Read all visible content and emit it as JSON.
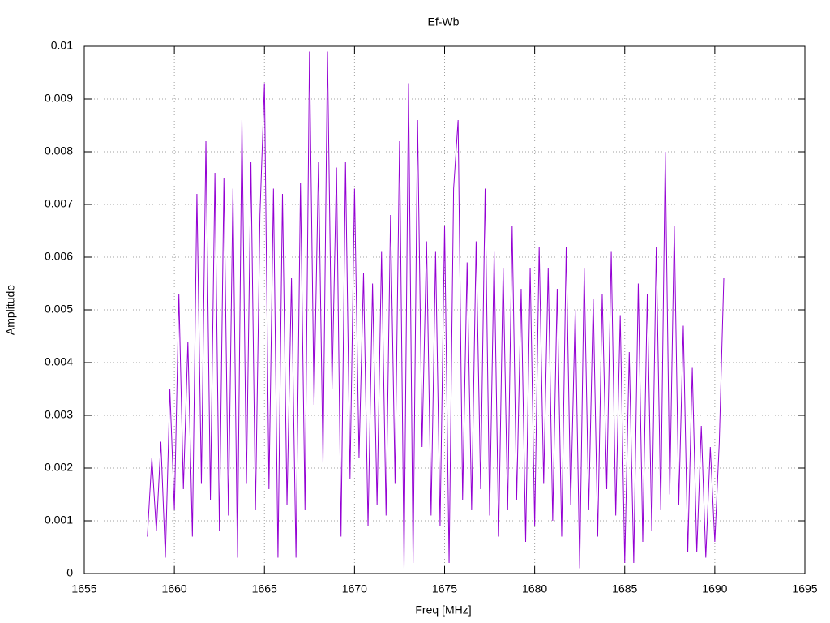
{
  "chart_data": {
    "type": "line",
    "title": "Ef-Wb",
    "xlabel": "Freq [MHz]",
    "ylabel": "Amplitude",
    "xlim": [
      1655,
      1695
    ],
    "xticks": [
      1655,
      1660,
      1665,
      1670,
      1675,
      1680,
      1685,
      1690,
      1695
    ],
    "ylim": [
      0,
      0.01
    ],
    "yticks": [
      0,
      0.001,
      0.002,
      0.003,
      0.004,
      0.005,
      0.006,
      0.007,
      0.008,
      0.009,
      0.01
    ],
    "grid": true,
    "series": [
      {
        "color": "#9400d3",
        "x": [
          1658.5,
          1658.75,
          1659,
          1659.25,
          1659.5,
          1659.75,
          1660,
          1660.25,
          1660.5,
          1660.75,
          1661,
          1661.25,
          1661.5,
          1661.75,
          1662,
          1662.25,
          1662.5,
          1662.75,
          1663,
          1663.25,
          1663.5,
          1663.75,
          1664,
          1664.25,
          1664.5,
          1664.75,
          1665,
          1665.25,
          1665.5,
          1665.75,
          1666,
          1666.25,
          1666.5,
          1666.75,
          1667,
          1667.25,
          1667.5,
          1667.75,
          1668,
          1668.25,
          1668.5,
          1668.75,
          1669,
          1669.25,
          1669.5,
          1669.75,
          1670,
          1670.25,
          1670.5,
          1670.75,
          1671,
          1671.25,
          1671.5,
          1671.75,
          1672,
          1672.25,
          1672.5,
          1672.75,
          1673,
          1673.25,
          1673.5,
          1673.75,
          1674,
          1674.25,
          1674.5,
          1674.75,
          1675,
          1675.25,
          1675.5,
          1675.75,
          1676,
          1676.25,
          1676.5,
          1676.75,
          1677,
          1677.25,
          1677.5,
          1677.75,
          1678,
          1678.25,
          1678.5,
          1678.75,
          1679,
          1679.25,
          1679.5,
          1679.75,
          1680,
          1680.25,
          1680.5,
          1680.75,
          1681,
          1681.25,
          1681.5,
          1681.75,
          1682,
          1682.25,
          1682.5,
          1682.75,
          1683,
          1683.25,
          1683.5,
          1683.75,
          1684,
          1684.25,
          1684.5,
          1684.75,
          1685,
          1685.25,
          1685.5,
          1685.75,
          1686,
          1686.25,
          1686.5,
          1686.75,
          1687,
          1687.25,
          1687.5,
          1687.75,
          1688,
          1688.25,
          1688.5,
          1688.75,
          1689,
          1689.25,
          1689.5,
          1689.75,
          1690,
          1690.25,
          1690.5
        ],
        "values": [
          0.0007,
          0.0022,
          0.0008,
          0.0025,
          0.0003,
          0.0035,
          0.0012,
          0.0053,
          0.0016,
          0.0044,
          0.0007,
          0.0072,
          0.0017,
          0.0082,
          0.0014,
          0.0076,
          0.0008,
          0.0075,
          0.0011,
          0.0073,
          0.0003,
          0.0086,
          0.0017,
          0.0078,
          0.0012,
          0.0068,
          0.0093,
          0.0016,
          0.0073,
          0.0003,
          0.0072,
          0.0013,
          0.0056,
          0.0003,
          0.0074,
          0.0012,
          0.0099,
          0.0032,
          0.0078,
          0.0021,
          0.0099,
          0.0035,
          0.0077,
          0.0007,
          0.0078,
          0.0018,
          0.0073,
          0.0022,
          0.0057,
          0.0009,
          0.0055,
          0.0013,
          0.0061,
          0.0011,
          0.0068,
          0.0017,
          0.0082,
          0.0001,
          0.0093,
          0.0002,
          0.0086,
          0.0024,
          0.0063,
          0.0011,
          0.0061,
          0.0009,
          0.0066,
          0.0002,
          0.0073,
          0.0086,
          0.0014,
          0.0059,
          0.0012,
          0.0063,
          0.0016,
          0.0073,
          0.0011,
          0.0061,
          0.0007,
          0.0058,
          0.0012,
          0.0066,
          0.0014,
          0.0054,
          0.0006,
          0.0058,
          0.0009,
          0.0062,
          0.0017,
          0.0058,
          0.001,
          0.0054,
          0.0007,
          0.0062,
          0.0013,
          0.005,
          0.0001,
          0.0058,
          0.0012,
          0.0052,
          0.0007,
          0.0053,
          0.0016,
          0.0061,
          0.0011,
          0.0049,
          0.0002,
          0.0042,
          0.0002,
          0.0055,
          0.0006,
          0.0053,
          0.0008,
          0.0062,
          0.0012,
          0.008,
          0.0015,
          0.0066,
          0.0013,
          0.0047,
          0.0004,
          0.0039,
          0.0004,
          0.0028,
          0.0003,
          0.0024,
          0.0006,
          0.0025,
          0.0056
        ]
      }
    ]
  }
}
